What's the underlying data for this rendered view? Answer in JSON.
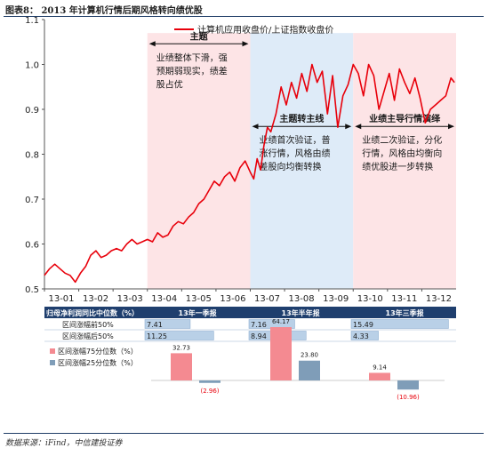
{
  "figure": {
    "title": "图表8：  2013 年计算机行情后期风格转向绩优股",
    "source": "数据来源：iFind，中信建投证券"
  },
  "colors": {
    "line": "#e8000b",
    "phase1_bg": "#fde4e6",
    "phase2_bg": "#deebf8",
    "phase3_bg": "#fde4e6",
    "header_bg": "#1f3f6e",
    "bar_blue": "#b9d0e7",
    "q75": "#f48a91",
    "q25": "#7f9db8",
    "neg_label": "#e8000b"
  },
  "chart_data": [
    {
      "type": "line",
      "legend": "计算机应用收盘价/上证指数收盘价",
      "legend_position": "top-right",
      "ylim": [
        0.5,
        1.1
      ],
      "yticks": [
        "0.5",
        "0.6",
        "0.7",
        "0.8",
        "0.9",
        "1.0",
        "1.1"
      ],
      "xlim": [
        0,
        12
      ],
      "xticks": [
        "13-01",
        "13-02",
        "13-03",
        "13-04",
        "13-05",
        "13-06",
        "13-07",
        "13-08",
        "13-09",
        "13-10",
        "13-11",
        "13-12"
      ],
      "x": [
        0.0,
        0.15,
        0.3,
        0.45,
        0.6,
        0.75,
        0.9,
        1.05,
        1.2,
        1.35,
        1.5,
        1.65,
        1.8,
        1.95,
        2.1,
        2.25,
        2.4,
        2.55,
        2.7,
        2.85,
        3.0,
        3.15,
        3.3,
        3.45,
        3.6,
        3.75,
        3.9,
        4.05,
        4.2,
        4.35,
        4.5,
        4.65,
        4.8,
        4.95,
        5.1,
        5.25,
        5.4,
        5.55,
        5.7,
        5.85,
        6.0,
        6.1,
        6.2,
        6.3,
        6.4,
        6.5,
        6.6,
        6.75,
        6.9,
        7.05,
        7.2,
        7.35,
        7.5,
        7.65,
        7.8,
        7.95,
        8.1,
        8.25,
        8.4,
        8.55,
        8.7,
        8.85,
        9.0,
        9.15,
        9.3,
        9.45,
        9.6,
        9.75,
        9.9,
        10.05,
        10.2,
        10.35,
        10.5,
        10.65,
        10.8,
        10.95,
        11.1,
        11.25,
        11.4,
        11.55,
        11.7,
        11.85,
        11.95
      ],
      "y": [
        0.53,
        0.545,
        0.555,
        0.545,
        0.535,
        0.53,
        0.515,
        0.535,
        0.55,
        0.575,
        0.585,
        0.57,
        0.575,
        0.585,
        0.59,
        0.585,
        0.6,
        0.61,
        0.6,
        0.605,
        0.61,
        0.605,
        0.625,
        0.615,
        0.62,
        0.64,
        0.65,
        0.645,
        0.66,
        0.67,
        0.69,
        0.7,
        0.72,
        0.74,
        0.73,
        0.75,
        0.76,
        0.74,
        0.77,
        0.785,
        0.76,
        0.745,
        0.79,
        0.765,
        0.82,
        0.86,
        0.85,
        0.89,
        0.95,
        0.91,
        0.96,
        0.925,
        0.98,
        0.94,
        1.0,
        0.96,
        0.985,
        0.89,
        0.975,
        0.86,
        0.93,
        0.955,
        1.0,
        0.98,
        0.93,
        1.0,
        0.975,
        0.9,
        0.94,
        0.98,
        0.92,
        0.99,
        0.96,
        0.935,
        0.97,
        0.925,
        0.87,
        0.9,
        0.91,
        0.92,
        0.93,
        0.97,
        0.96
      ],
      "phases": [
        {
          "start": 3.0,
          "end": 6.0,
          "heading": "主题",
          "note_lines": [
            "业绩整体下滑，强",
            "预期弱现实，绩差",
            "股占优"
          ]
        },
        {
          "start": 6.0,
          "end": 9.0,
          "heading": "主题转主线",
          "note_lines": [
            "业绩首次验证，普",
            "涨行情，风格由绩",
            "差股向均衡转换"
          ]
        },
        {
          "start": 9.0,
          "end": 12.0,
          "heading": "业绩主导行情演绎",
          "note_lines": [
            "业绩二次验证，分化",
            "行情，风格由均衡向",
            "绩优股进一步转换"
          ]
        }
      ]
    },
    {
      "type": "table",
      "columns": [
        "归母净利润同比中位数（%）",
        "13年一季报",
        "13年半年报",
        "13年三季报"
      ],
      "rows": [
        {
          "label": "区间涨幅前50%",
          "values": [
            7.41,
            7.16,
            15.49
          ]
        },
        {
          "label": "区间涨幅后50%",
          "values": [
            11.25,
            8.94,
            4.33
          ]
        }
      ],
      "max_value": 16
    },
    {
      "type": "bar",
      "categories": [
        "13年一季报",
        "13年半年报",
        "13年三季报"
      ],
      "series": [
        {
          "name": "区间涨幅75分位数（%）",
          "values": [
            32.73,
            64.17,
            9.14
          ],
          "labels": [
            "32.73",
            "64.17",
            "9.14"
          ]
        },
        {
          "name": "区间涨幅25分位数（%）",
          "values": [
            -2.96,
            23.8,
            -10.96
          ],
          "labels": [
            "(2.96)",
            "23.80",
            "(10.96)"
          ]
        }
      ]
    }
  ]
}
